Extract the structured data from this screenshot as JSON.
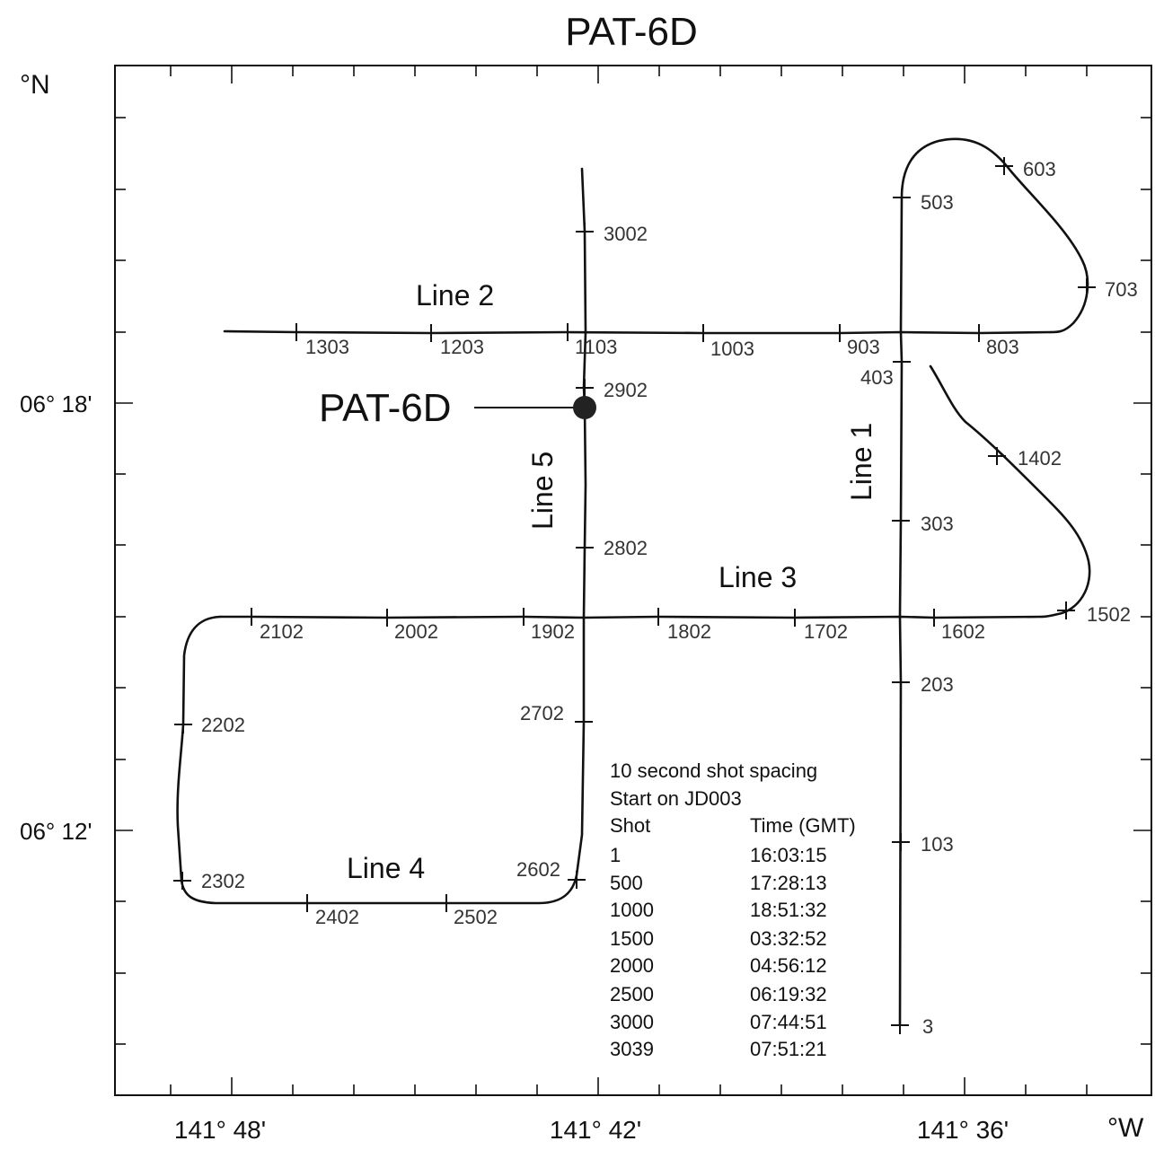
{
  "map": {
    "title": "PAT-6D",
    "axis_unit_lat": "°N",
    "axis_unit_lon": "°W",
    "lon_ticks": [
      "141° 48'",
      "141° 42'",
      "141° 36'"
    ],
    "lat_ticks": [
      "06° 18'",
      "06° 12'"
    ],
    "station_label": "PAT-6D",
    "line_labels": {
      "line1": "Line 1",
      "line2": "Line 2",
      "line3": "Line 3",
      "line4": "Line 4",
      "line5": "Line 5"
    },
    "shot_labels": {
      "s3": "3",
      "s103": "103",
      "s203": "203",
      "s303": "303",
      "s403": "403",
      "s503": "503",
      "s603": "603",
      "s703": "703",
      "s803": "803",
      "s903": "903",
      "s1003": "1003",
      "s1103": "1103",
      "s1203": "1203",
      "s1303": "1303",
      "s1402": "1402",
      "s1502": "1502",
      "s1602": "1602",
      "s1702": "1702",
      "s1802": "1802",
      "s1902": "1902",
      "s2002": "2002",
      "s2102": "2102",
      "s2202": "2202",
      "s2302": "2302",
      "s2402": "2402",
      "s2502": "2502",
      "s2602": "2602",
      "s2702": "2702",
      "s2802": "2802",
      "s2902": "2902",
      "s3002": "3002"
    },
    "legend": {
      "line1": "10 second shot spacing",
      "line2": "Start on JD003",
      "col_shot": "Shot",
      "col_time": "Time (GMT)",
      "rows": [
        {
          "shot": "1",
          "time": "16:03:15"
        },
        {
          "shot": "500",
          "time": "17:28:13"
        },
        {
          "shot": "1000",
          "time": "18:51:32"
        },
        {
          "shot": "1500",
          "time": "03:32:52"
        },
        {
          "shot": "2000",
          "time": "04:56:12"
        },
        {
          "shot": "2500",
          "time": "06:19:32"
        },
        {
          "shot": "3000",
          "time": "07:44:51"
        },
        {
          "shot": "3039",
          "time": "07:51:21"
        }
      ]
    },
    "colors": {
      "track": "#111111",
      "frame": "#111111",
      "label": "#333333"
    }
  }
}
